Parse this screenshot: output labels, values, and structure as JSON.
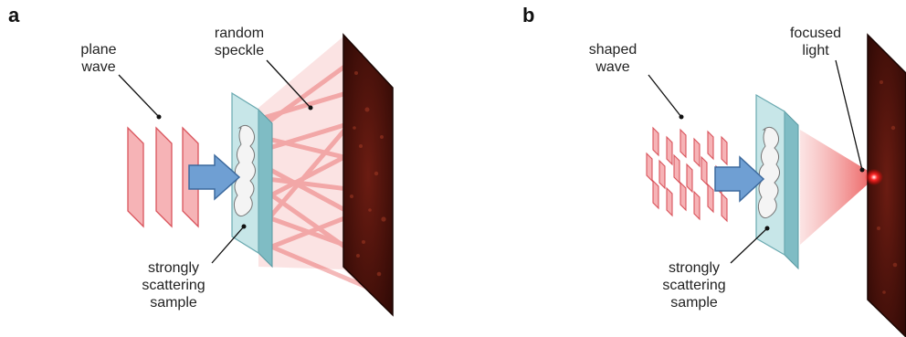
{
  "panels": [
    {
      "letter": "a",
      "labels": {
        "incident": [
          "plane",
          "wave"
        ],
        "output": [
          "random",
          "speckle"
        ],
        "sample": [
          "strongly",
          "scattering",
          "sample"
        ]
      }
    },
    {
      "letter": "b",
      "labels": {
        "incident": [
          "shaped",
          "wave"
        ],
        "output": [
          "focused",
          "light"
        ],
        "sample": [
          "strongly",
          "scattering",
          "sample"
        ]
      }
    }
  ],
  "colors": {
    "wavefront_fill": "#f6b3b6",
    "wavefront_stroke": "#d9545c",
    "beam": "#e23a3a",
    "slab_face": "#c7e6e8",
    "slab_edge": "#7fbcc4",
    "arrow_fill": "#6f9fd3",
    "arrow_stroke": "#3d6a9e",
    "screen_dark": "#3a0d08",
    "focus_spot": "#ff1a1a"
  }
}
